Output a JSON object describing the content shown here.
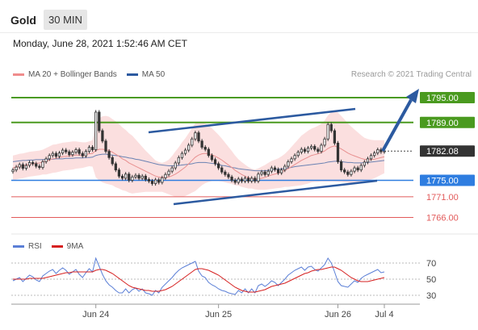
{
  "header": {
    "title": "Gold",
    "timeframe": "30 MIN"
  },
  "datetime": "Monday, June 28, 2021 1:52:46 AM CET",
  "legend": {
    "bb_label": "MA 20 + Bollinger Bands",
    "ma50_label": "MA 50",
    "credit": "Research © 2021 Trading Central"
  },
  "rsi_legend": {
    "rsi_label": "RSI",
    "ma_label": "9MA"
  },
  "colors": {
    "resistance": "#4a9a1f",
    "support": "#2e7de0",
    "target": "#e25a5a",
    "arrow": "#2c5aa0",
    "candle": "#333333",
    "bb": "#f9d4d4"
  },
  "chart_data": {
    "type": "candlestick",
    "price_ylim": [
      1762.0,
      1799.5
    ],
    "current_price": "1782.08",
    "levels": [
      {
        "label": "1795.00",
        "value": 1795.0,
        "kind": "resistance"
      },
      {
        "label": "1789.00",
        "value": 1789.0,
        "kind": "resistance"
      },
      {
        "label": "1782.08",
        "value": 1782.08,
        "kind": "current"
      },
      {
        "label": "1775.00",
        "value": 1775.0,
        "kind": "support"
      },
      {
        "label": "1771.00",
        "value": 1771.0,
        "kind": "target"
      },
      {
        "label": "1766.00",
        "value": 1766.0,
        "kind": "target"
      }
    ],
    "x_ticks": [
      "Jun 24",
      "Jun 25",
      "Jun 26",
      "Jul 4"
    ],
    "x_tick_index": [
      25,
      62,
      98,
      112
    ],
    "rsi_ylim": [
      20,
      80
    ],
    "rsi_ticks": [
      "70",
      "50",
      "30"
    ],
    "rsi_tick_values": [
      70,
      50,
      30
    ],
    "closes": [
      1777.5,
      1778.2,
      1778.8,
      1777.9,
      1778.6,
      1779.3,
      1779.0,
      1778.4,
      1778.1,
      1779.5,
      1780.2,
      1781.0,
      1781.5,
      1780.8,
      1781.6,
      1782.3,
      1781.9,
      1781.2,
      1781.8,
      1782.4,
      1781.5,
      1780.9,
      1782.0,
      1783.0,
      1782.4,
      1791.5,
      1787.0,
      1784.5,
      1782.0,
      1780.5,
      1779.0,
      1777.5,
      1776.0,
      1775.5,
      1776.5,
      1775.0,
      1775.8,
      1776.2,
      1775.5,
      1776.0,
      1775.2,
      1774.8,
      1774.2,
      1775.1,
      1774.5,
      1775.6,
      1776.4,
      1777.2,
      1778.0,
      1779.2,
      1780.5,
      1781.5,
      1782.3,
      1783.5,
      1785.0,
      1786.5,
      1784.5,
      1783.0,
      1782.5,
      1781.0,
      1780.0,
      1779.0,
      1778.0,
      1777.0,
      1776.4,
      1775.8,
      1775.0,
      1774.5,
      1775.3,
      1774.8,
      1775.5,
      1774.8,
      1775.5,
      1774.8,
      1776.5,
      1777.0,
      1776.4,
      1777.2,
      1778.0,
      1777.6,
      1776.8,
      1777.5,
      1778.4,
      1779.5,
      1780.2,
      1781.0,
      1781.8,
      1782.5,
      1782.0,
      1782.8,
      1783.2,
      1782.5,
      1782.0,
      1783.5,
      1785.0,
      1788.5,
      1787.0,
      1784.0,
      1779.5,
      1777.5,
      1777.0,
      1776.4,
      1777.2,
      1778.0,
      1777.5,
      1778.6,
      1779.4,
      1780.2,
      1781.0,
      1781.6,
      1782.4,
      1781.9,
      1782.08
    ],
    "bb_mid": [
      1778.0,
      1778.2,
      1778.4,
      1778.5,
      1778.7,
      1778.9,
      1779.0,
      1779.1,
      1779.2,
      1779.4,
      1779.6,
      1779.9,
      1780.2,
      1780.3,
      1780.5,
      1780.7,
      1780.8,
      1780.9,
      1781.0,
      1781.1,
      1781.1,
      1781.1,
      1781.2,
      1781.4,
      1781.5,
      1782.2,
      1782.5,
      1782.5,
      1782.4,
      1782.2,
      1781.8,
      1781.3,
      1780.8,
      1780.2,
      1779.8,
      1779.2,
      1778.8,
      1778.4,
      1778.0,
      1777.6,
      1777.2,
      1776.8,
      1776.4,
      1776.0,
      1775.8,
      1775.7,
      1775.7,
      1775.8,
      1776.1,
      1776.5,
      1777.0,
      1777.6,
      1778.2,
      1779.0,
      1779.8,
      1780.6,
      1781.1,
      1781.4,
      1781.5,
      1781.4,
      1781.2,
      1780.8,
      1780.4,
      1779.9,
      1779.3,
      1778.7,
      1778.1,
      1777.4,
      1776.9,
      1776.4,
      1776.0,
      1775.6,
      1775.4,
      1775.2,
      1775.3,
      1775.5,
      1775.7,
      1776.0,
      1776.3,
      1776.5,
      1776.7,
      1777.0,
      1777.4,
      1777.8,
      1778.3,
      1778.8,
      1779.3,
      1779.8,
      1780.2,
      1780.6,
      1781.0,
      1781.2,
      1781.4,
      1781.7,
      1782.1,
      1782.7,
      1783.1,
      1783.3,
      1783.0,
      1782.6,
      1782.1,
      1781.6,
      1781.2,
      1780.9,
      1780.6,
      1780.3,
      1780.1,
      1780.0,
      1780.0,
      1780.1,
      1780.3,
      1780.5,
      1780.7
    ],
    "bb_width": [
      3.0,
      3.0,
      3.0,
      3.0,
      3.0,
      3.0,
      3.0,
      3.0,
      3.0,
      3.0,
      3.2,
      3.3,
      3.4,
      3.4,
      3.4,
      3.4,
      3.4,
      3.4,
      3.4,
      3.3,
      3.2,
      3.1,
      3.0,
      3.0,
      3.2,
      6.5,
      7.5,
      8.0,
      8.2,
      8.2,
      8.0,
      8.0,
      7.8,
      7.6,
      7.4,
      7.2,
      7.0,
      6.5,
      6.0,
      5.5,
      5.0,
      4.6,
      4.2,
      3.8,
      3.6,
      3.5,
      3.8,
      4.2,
      4.8,
      5.5,
      6.0,
      6.6,
      7.0,
      7.4,
      7.8,
      8.2,
      8.0,
      7.6,
      7.2,
      6.8,
      6.4,
      6.0,
      5.6,
      5.2,
      4.8,
      4.4,
      4.0,
      3.6,
      3.2,
      3.0,
      2.8,
      2.6,
      2.4,
      2.4,
      2.6,
      2.8,
      3.0,
      3.2,
      3.4,
      3.5,
      3.6,
      3.8,
      4.0,
      4.4,
      4.8,
      5.2,
      5.6,
      6.0,
      6.2,
      6.4,
      6.5,
      6.6,
      6.8,
      7.0,
      7.4,
      8.0,
      8.4,
      8.6,
      8.4,
      8.0,
      7.6,
      7.2,
      6.8,
      6.4,
      6.0,
      5.6,
      5.2,
      5.0,
      4.8,
      4.6,
      4.4,
      4.2,
      4.0
    ],
    "ma50": [
      1779.5,
      1779.6,
      1779.7,
      1779.8,
      1779.8,
      1779.9,
      1779.9,
      1780.0,
      1780.0,
      1780.0,
      1780.1,
      1780.1,
      1780.1,
      1780.2,
      1780.2,
      1780.2,
      1780.3,
      1780.3,
      1780.3,
      1780.4,
      1780.4,
      1780.4,
      1780.5,
      1780.5,
      1780.6,
      1781.0,
      1781.2,
      1781.3,
      1781.3,
      1781.2,
      1781.1,
      1781.0,
      1780.9,
      1780.7,
      1780.6,
      1780.4,
      1780.3,
      1780.1,
      1780.0,
      1779.8,
      1779.6,
      1779.4,
      1779.2,
      1779.0,
      1778.8,
      1778.7,
      1778.6,
      1778.5,
      1778.5,
      1778.5,
      1778.6,
      1778.7,
      1778.8,
      1778.9,
      1779.0,
      1779.2,
      1779.3,
      1779.3,
      1779.3,
      1779.2,
      1779.1,
      1779.0,
      1778.8,
      1778.6,
      1778.5,
      1778.3,
      1778.1,
      1778.0,
      1777.8,
      1777.7,
      1777.6,
      1777.5,
      1777.4,
      1777.3,
      1777.3,
      1777.3,
      1777.3,
      1777.4,
      1777.5,
      1777.6,
      1777.7,
      1777.8,
      1777.9,
      1778.0,
      1778.1,
      1778.3,
      1778.4,
      1778.5,
      1778.6,
      1778.7,
      1778.8,
      1778.9,
      1779.0,
      1779.1,
      1779.2,
      1779.4,
      1779.5,
      1779.6,
      1779.6,
      1779.5,
      1779.4,
      1779.3,
      1779.3,
      1779.2,
      1779.2,
      1779.2,
      1779.3,
      1779.3,
      1779.4,
      1779.5,
      1779.6,
      1779.7,
      1779.8
    ],
    "rsi": [
      48,
      50,
      52,
      47,
      51,
      55,
      53,
      49,
      47,
      54,
      57,
      60,
      62,
      57,
      61,
      64,
      61,
      56,
      59,
      62,
      56,
      52,
      58,
      63,
      59,
      76,
      66,
      56,
      48,
      43,
      40,
      36,
      33,
      33,
      38,
      33,
      37,
      39,
      35,
      38,
      33,
      32,
      30,
      36,
      33,
      40,
      44,
      48,
      52,
      57,
      61,
      64,
      66,
      68,
      70,
      72,
      60,
      54,
      52,
      46,
      43,
      41,
      38,
      36,
      35,
      33,
      32,
      31,
      36,
      33,
      38,
      33,
      38,
      33,
      42,
      44,
      41,
      44,
      48,
      46,
      42,
      46,
      50,
      55,
      58,
      61,
      63,
      65,
      61,
      65,
      66,
      62,
      60,
      64,
      68,
      76,
      70,
      59,
      47,
      42,
      41,
      40,
      44,
      48,
      46,
      51,
      54,
      56,
      58,
      60,
      62,
      58,
      59
    ],
    "rsi_ma": [
      50,
      50,
      50,
      50,
      50,
      51,
      51,
      51,
      51,
      51,
      52,
      53,
      54,
      55,
      56,
      57,
      58,
      58,
      59,
      59,
      59,
      59,
      59,
      59,
      59,
      61,
      62,
      62,
      61,
      59,
      57,
      54,
      51,
      48,
      45,
      42,
      40,
      39,
      38,
      37,
      36,
      36,
      35,
      35,
      35,
      36,
      37,
      39,
      41,
      44,
      47,
      50,
      53,
      56,
      59,
      62,
      63,
      63,
      62,
      61,
      59,
      57,
      55,
      52,
      49,
      46,
      43,
      40,
      38,
      36,
      35,
      34,
      34,
      34,
      35,
      36,
      37,
      39,
      41,
      42,
      43,
      44,
      45,
      47,
      49,
      51,
      53,
      55,
      57,
      58,
      60,
      61,
      62,
      62,
      63,
      64,
      65,
      65,
      63,
      61,
      58,
      55,
      52,
      50,
      48,
      47,
      47,
      47,
      48,
      49,
      50,
      51,
      52
    ]
  }
}
